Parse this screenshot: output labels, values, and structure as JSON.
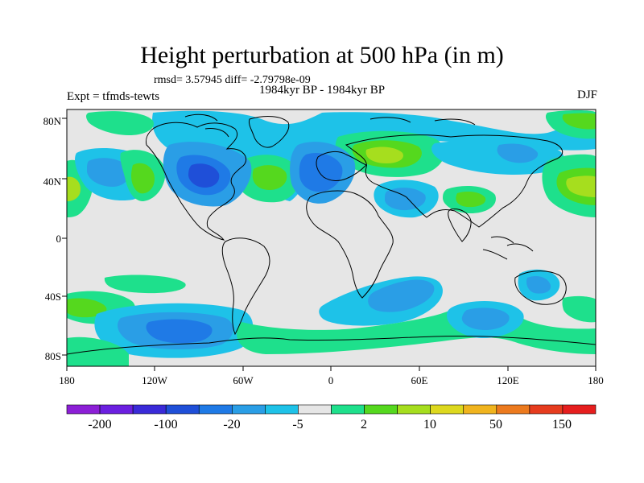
{
  "title": "Height perturbation at 500 hPa (in m)",
  "stats": "rmsd= 3.57945 diff= -2.79798e-09",
  "period": "1984kyr BP - 1984kyr BP",
  "experiment": "Expt = tfmds-tewts",
  "season": "DJF",
  "map": {
    "lat_labels": [
      "80N",
      "40N",
      "0",
      "40S",
      "80S"
    ],
    "lon_labels": [
      "180",
      "120W",
      "60W",
      "0",
      "60E",
      "120E",
      "180"
    ],
    "background_color": "#e6e6e6"
  },
  "colorbar": {
    "colors": [
      "#8c1fd6",
      "#6b1fe0",
      "#3a2ad8",
      "#1f4fd8",
      "#1f7ae6",
      "#2a9ee6",
      "#1ec2e8",
      "#e6e6e6",
      "#1ee08c",
      "#55d81e",
      "#a6de1e",
      "#ddd81e",
      "#f0b41e",
      "#ec7a1e",
      "#e63c1e",
      "#e61e1e"
    ],
    "labels": [
      "-200",
      "-100",
      "-20",
      "-5",
      "2",
      "10",
      "50",
      "150"
    ]
  },
  "palette": {
    "light_blue": "#1ec2e8",
    "mid_blue": "#2a9ee6",
    "dark_blue": "#1f7ae6",
    "deep_blue": "#1f4fd8",
    "green": "#1ee08c",
    "light_green": "#55d81e",
    "yellow_green": "#a6de1e"
  }
}
